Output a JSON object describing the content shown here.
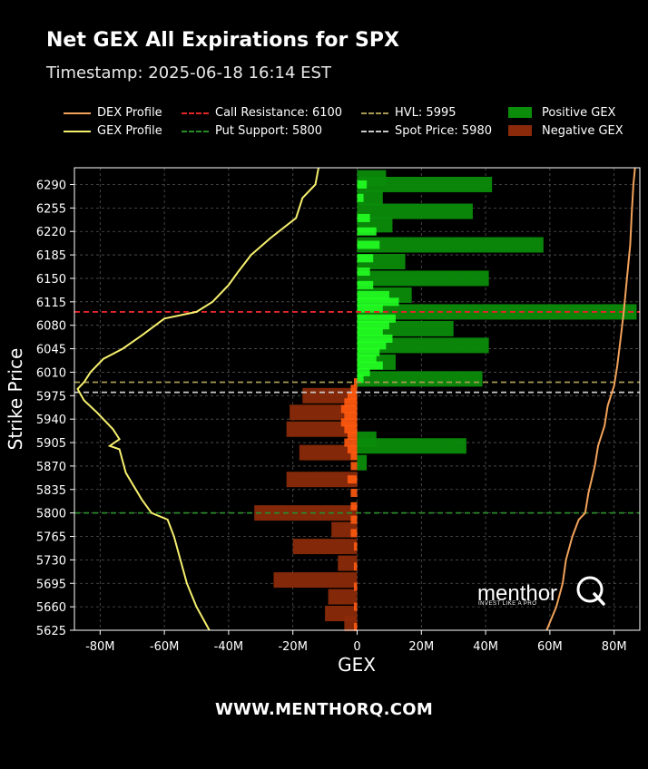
{
  "page": {
    "title": "Net GEX All Expirations for SPX",
    "subtitle": "Timestamp: 2025-06-18 16:14 EST",
    "footer": "WWW.MENTHORQ.COM",
    "watermark": {
      "brand": "menthor",
      "tagline": "INVEST LIKE A PRO",
      "logo_icon": "q-logo-icon"
    }
  },
  "legend": [
    {
      "id": "dex",
      "label": "DEX Profile",
      "style": "solid",
      "color": "#f2a25a"
    },
    {
      "id": "gex",
      "label": "GEX Profile",
      "style": "solid",
      "color": "#f5ef6e"
    },
    {
      "id": "call",
      "label": "Call Resistance: 6100",
      "style": "dashed",
      "color": "#e02626"
    },
    {
      "id": "put",
      "label": "Put Support: 5800",
      "style": "dashed",
      "color": "#2a8c2a"
    },
    {
      "id": "hvl",
      "label": "HVL: 5995",
      "style": "dashed",
      "color": "#a89a55"
    },
    {
      "id": "spot",
      "label": "Spot Price: 5980",
      "style": "dashed",
      "color": "#c8c8c8"
    },
    {
      "id": "pos",
      "label": "Positive GEX",
      "style": "box",
      "color": "#0b8c0b"
    },
    {
      "id": "neg",
      "label": "Negative GEX",
      "style": "box",
      "color": "#8a2a0a"
    }
  ],
  "chart_data": {
    "type": "bar",
    "orientation": "horizontal",
    "xlabel": "GEX",
    "ylabel": "Strike Price",
    "xlim": [
      -88000000,
      88000000
    ],
    "ylim": [
      5625,
      6315
    ],
    "x_ticks": [
      -80000000,
      -60000000,
      -40000000,
      -20000000,
      0,
      20000000,
      40000000,
      60000000,
      80000000
    ],
    "x_tick_labels": [
      "-80M",
      "-60M",
      "-40M",
      "-20M",
      "0",
      "20M",
      "40M",
      "60M",
      "80M"
    ],
    "y_ticks": [
      5625,
      5660,
      5695,
      5730,
      5765,
      5800,
      5835,
      5870,
      5905,
      5940,
      5975,
      6010,
      6045,
      6080,
      6115,
      6150,
      6185,
      6220,
      6255,
      6290
    ],
    "grid": true,
    "levels": [
      {
        "name": "Call Resistance",
        "value": 6100,
        "color": "#e02626"
      },
      {
        "name": "Put Support",
        "value": 5800,
        "color": "#2a8c2a"
      },
      {
        "name": "HVL",
        "value": 5995,
        "color": "#a89a55"
      },
      {
        "name": "Spot Price",
        "value": 5980,
        "color": "#c8c8c8"
      }
    ],
    "all_expirations": [
      {
        "strike": 6300,
        "value": 9000000
      },
      {
        "strike": 6290,
        "value": 42000000
      },
      {
        "strike": 6270,
        "value": 8000000
      },
      {
        "strike": 6250,
        "value": 36000000
      },
      {
        "strike": 6230,
        "value": 11000000
      },
      {
        "strike": 6200,
        "value": 58000000
      },
      {
        "strike": 6175,
        "value": 15000000
      },
      {
        "strike": 6150,
        "value": 41000000
      },
      {
        "strike": 6125,
        "value": 17000000
      },
      {
        "strike": 6100,
        "value": 87000000
      },
      {
        "strike": 6075,
        "value": 30000000
      },
      {
        "strike": 6050,
        "value": 41000000
      },
      {
        "strike": 6025,
        "value": 12000000
      },
      {
        "strike": 6000,
        "value": 39000000
      },
      {
        "strike": 5975,
        "value": -17000000
      },
      {
        "strike": 5950,
        "value": -21000000
      },
      {
        "strike": 5925,
        "value": -22000000
      },
      {
        "strike": 5910,
        "value": 6000000
      },
      {
        "strike": 5900,
        "value": 34000000
      },
      {
        "strike": 5890,
        "value": -18000000
      },
      {
        "strike": 5875,
        "value": 3000000
      },
      {
        "strike": 5850,
        "value": -22000000
      },
      {
        "strike": 5800,
        "value": -32000000
      },
      {
        "strike": 5775,
        "value": -8000000
      },
      {
        "strike": 5750,
        "value": -20000000
      },
      {
        "strike": 5725,
        "value": -6000000
      },
      {
        "strike": 5700,
        "value": -26000000
      },
      {
        "strike": 5675,
        "value": -9000000
      },
      {
        "strike": 5650,
        "value": -10000000
      },
      {
        "strike": 5635,
        "value": -4000000
      }
    ],
    "near_term": [
      {
        "strike": 6290,
        "value": 3000000
      },
      {
        "strike": 6270,
        "value": 2000000
      },
      {
        "strike": 6240,
        "value": 4000000
      },
      {
        "strike": 6220,
        "value": 6000000
      },
      {
        "strike": 6200,
        "value": 7000000
      },
      {
        "strike": 6180,
        "value": 5000000
      },
      {
        "strike": 6160,
        "value": 4000000
      },
      {
        "strike": 6140,
        "value": 5000000
      },
      {
        "strike": 6125,
        "value": 10000000
      },
      {
        "strike": 6115,
        "value": 13000000
      },
      {
        "strike": 6105,
        "value": 8000000
      },
      {
        "strike": 6090,
        "value": 12000000
      },
      {
        "strike": 6080,
        "value": 10000000
      },
      {
        "strike": 6070,
        "value": 8000000
      },
      {
        "strike": 6060,
        "value": 11000000
      },
      {
        "strike": 6050,
        "value": 9000000
      },
      {
        "strike": 6040,
        "value": 7000000
      },
      {
        "strike": 6030,
        "value": 6000000
      },
      {
        "strike": 6020,
        "value": 8000000
      },
      {
        "strike": 6010,
        "value": 4000000
      },
      {
        "strike": 6000,
        "value": 2000000
      },
      {
        "strike": 5995,
        "value": -1000000
      },
      {
        "strike": 5985,
        "value": -2000000
      },
      {
        "strike": 5975,
        "value": -3000000
      },
      {
        "strike": 5965,
        "value": -4000000
      },
      {
        "strike": 5955,
        "value": -5000000
      },
      {
        "strike": 5945,
        "value": -4000000
      },
      {
        "strike": 5935,
        "value": -5000000
      },
      {
        "strike": 5925,
        "value": -4000000
      },
      {
        "strike": 5915,
        "value": -3000000
      },
      {
        "strike": 5905,
        "value": -4000000
      },
      {
        "strike": 5895,
        "value": -3000000
      },
      {
        "strike": 5885,
        "value": -2000000
      },
      {
        "strike": 5870,
        "value": -2000000
      },
      {
        "strike": 5850,
        "value": -3000000
      },
      {
        "strike": 5830,
        "value": -2000000
      },
      {
        "strike": 5810,
        "value": -2000000
      },
      {
        "strike": 5790,
        "value": -2000000
      },
      {
        "strike": 5770,
        "value": -2000000
      },
      {
        "strike": 5750,
        "value": -1000000
      },
      {
        "strike": 5720,
        "value": -1000000
      },
      {
        "strike": 5690,
        "value": -1000000
      },
      {
        "strike": 5660,
        "value": -1000000
      },
      {
        "strike": 5630,
        "value": -1000000
      }
    ],
    "gex_profile": [
      [
        -46000000,
        5625
      ],
      [
        -50000000,
        5660
      ],
      [
        -53000000,
        5695
      ],
      [
        -55000000,
        5730
      ],
      [
        -57000000,
        5765
      ],
      [
        -59000000,
        5790
      ],
      [
        -64000000,
        5800
      ],
      [
        -67000000,
        5820
      ],
      [
        -72000000,
        5860
      ],
      [
        -74000000,
        5895
      ],
      [
        -77000000,
        5900
      ],
      [
        -74000000,
        5910
      ],
      [
        -76000000,
        5925
      ],
      [
        -81000000,
        5950
      ],
      [
        -85000000,
        5968
      ],
      [
        -87000000,
        5985
      ],
      [
        -85000000,
        5995
      ],
      [
        -83000000,
        6010
      ],
      [
        -79000000,
        6030
      ],
      [
        -73000000,
        6045
      ],
      [
        -67000000,
        6065
      ],
      [
        -60000000,
        6090
      ],
      [
        -50000000,
        6100
      ],
      [
        -45000000,
        6115
      ],
      [
        -40000000,
        6140
      ],
      [
        -37000000,
        6160
      ],
      [
        -33000000,
        6185
      ],
      [
        -27000000,
        6210
      ],
      [
        -19000000,
        6240
      ],
      [
        -17000000,
        6270
      ],
      [
        -13000000,
        6290
      ],
      [
        -12000000,
        6315
      ]
    ],
    "dex_profile": [
      [
        59000000,
        5625
      ],
      [
        62000000,
        5660
      ],
      [
        64000000,
        5695
      ],
      [
        65000000,
        5730
      ],
      [
        67000000,
        5765
      ],
      [
        69000000,
        5790
      ],
      [
        71000000,
        5800
      ],
      [
        72000000,
        5830
      ],
      [
        74000000,
        5870
      ],
      [
        75000000,
        5900
      ],
      [
        77000000,
        5930
      ],
      [
        78000000,
        5960
      ],
      [
        80000000,
        5990
      ],
      [
        81000000,
        6020
      ],
      [
        82000000,
        6060
      ],
      [
        83000000,
        6100
      ],
      [
        84000000,
        6150
      ],
      [
        85000000,
        6200
      ],
      [
        85500000,
        6250
      ],
      [
        86000000,
        6290
      ],
      [
        86500000,
        6315
      ]
    ],
    "colors": {
      "positive": "#0b8c0b",
      "positive_near": "#22ff22",
      "negative": "#8a2a0a",
      "negative_near": "#ff5a10",
      "gex_profile": "#f5ef6e",
      "dex_profile": "#f2a25a",
      "grid": "#555555"
    }
  }
}
